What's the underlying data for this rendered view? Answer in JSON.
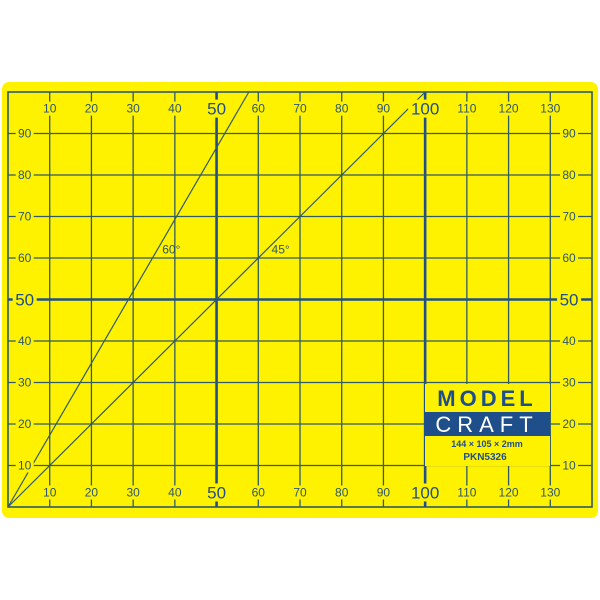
{
  "mat": {
    "colors": {
      "background": "#fff200",
      "grid": "#2f5a66",
      "major": "#1e4f8a",
      "white": "#ffffff"
    },
    "width_units": 140,
    "height_units": 100,
    "grid_step": 10,
    "major_lines": [
      50,
      100
    ],
    "x_labels": [
      "10",
      "20",
      "30",
      "40",
      "50",
      "60",
      "70",
      "80",
      "90",
      "100",
      "110",
      "120",
      "130"
    ],
    "y_labels": [
      "10",
      "20",
      "30",
      "40",
      "50",
      "60",
      "70",
      "80",
      "90"
    ],
    "angle_lines": [
      {
        "angle": 60,
        "label": "60°"
      },
      {
        "angle": 45,
        "label": "45°"
      }
    ]
  },
  "logo": {
    "line1": "MODEL",
    "line2": "CRAFT",
    "size": "144 × 105 × 2mm",
    "code": "PKN5326"
  }
}
